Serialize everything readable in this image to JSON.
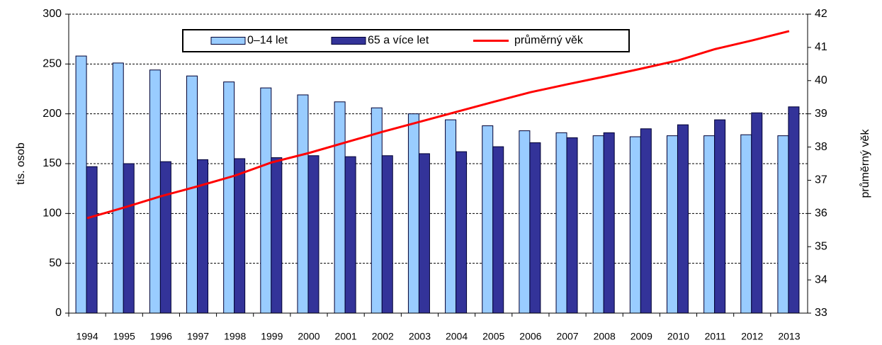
{
  "chart_data": {
    "type": "bar",
    "categories": [
      "1994",
      "1995",
      "1996",
      "1997",
      "1998",
      "1999",
      "2000",
      "2001",
      "2002",
      "2003",
      "2004",
      "2005",
      "2006",
      "2007",
      "2008",
      "2009",
      "2010",
      "2011",
      "2012",
      "2013"
    ],
    "series": [
      {
        "name": "0–14 let",
        "color": "#99ccff",
        "values": [
          258,
          251,
          244,
          238,
          232,
          226,
          219,
          212,
          206,
          200,
          194,
          188,
          183,
          181,
          178,
          177,
          178,
          178,
          179,
          178
        ]
      },
      {
        "name": "65 a více let",
        "color": "#333399",
        "values": [
          147,
          150,
          152,
          154,
          155,
          156,
          158,
          157,
          158,
          160,
          162,
          167,
          171,
          176,
          181,
          185,
          189,
          194,
          201,
          207
        ]
      },
      {
        "name": "průměrný věk",
        "color": "#ff0000",
        "type": "line",
        "axis": "y2",
        "values": [
          35.86,
          36.18,
          36.52,
          36.82,
          37.14,
          37.54,
          37.82,
          38.14,
          38.46,
          38.76,
          39.06,
          39.36,
          39.65,
          39.89,
          40.12,
          40.36,
          40.61,
          40.95,
          41.21,
          41.49
        ]
      }
    ],
    "ylabel": "tis. osob",
    "y2label": "průměrný věk",
    "ylim": [
      0,
      300
    ],
    "yticks": [
      0,
      50,
      100,
      150,
      200,
      250,
      300
    ],
    "y2lim": [
      33,
      42
    ],
    "y2ticks": [
      33,
      34,
      35,
      36,
      37,
      38,
      39,
      40,
      41,
      42
    ],
    "grid": true,
    "legend": "top"
  }
}
